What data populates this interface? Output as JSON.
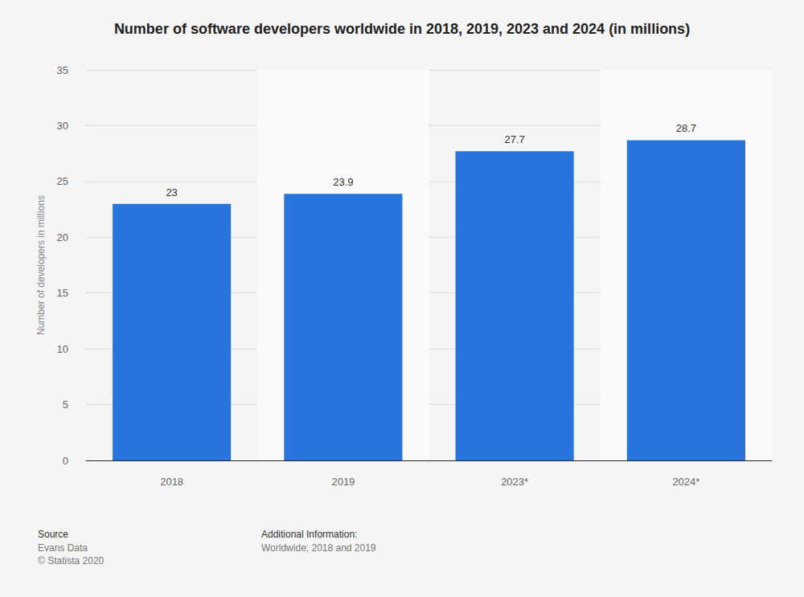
{
  "chart_data": {
    "type": "bar",
    "title": "Number of software developers worldwide in 2018, 2019, 2023 and 2024 (in millions)",
    "y_label": "Number of developers in millions",
    "categories": [
      "2018",
      "2019",
      "2023*",
      "2024*"
    ],
    "values": [
      23,
      23.9,
      27.7,
      28.7
    ],
    "color": "#2876dd",
    "ylim": [
      0,
      35
    ],
    "yticks": [
      0,
      5,
      10,
      15,
      20,
      25,
      30,
      35
    ],
    "grid": true,
    "data_labels": true,
    "annotations": [
      "Source",
      "Evans Data",
      "© Statista 2020",
      "Additional Information:",
      "Worldwide; 2018 and 2019"
    ]
  }
}
